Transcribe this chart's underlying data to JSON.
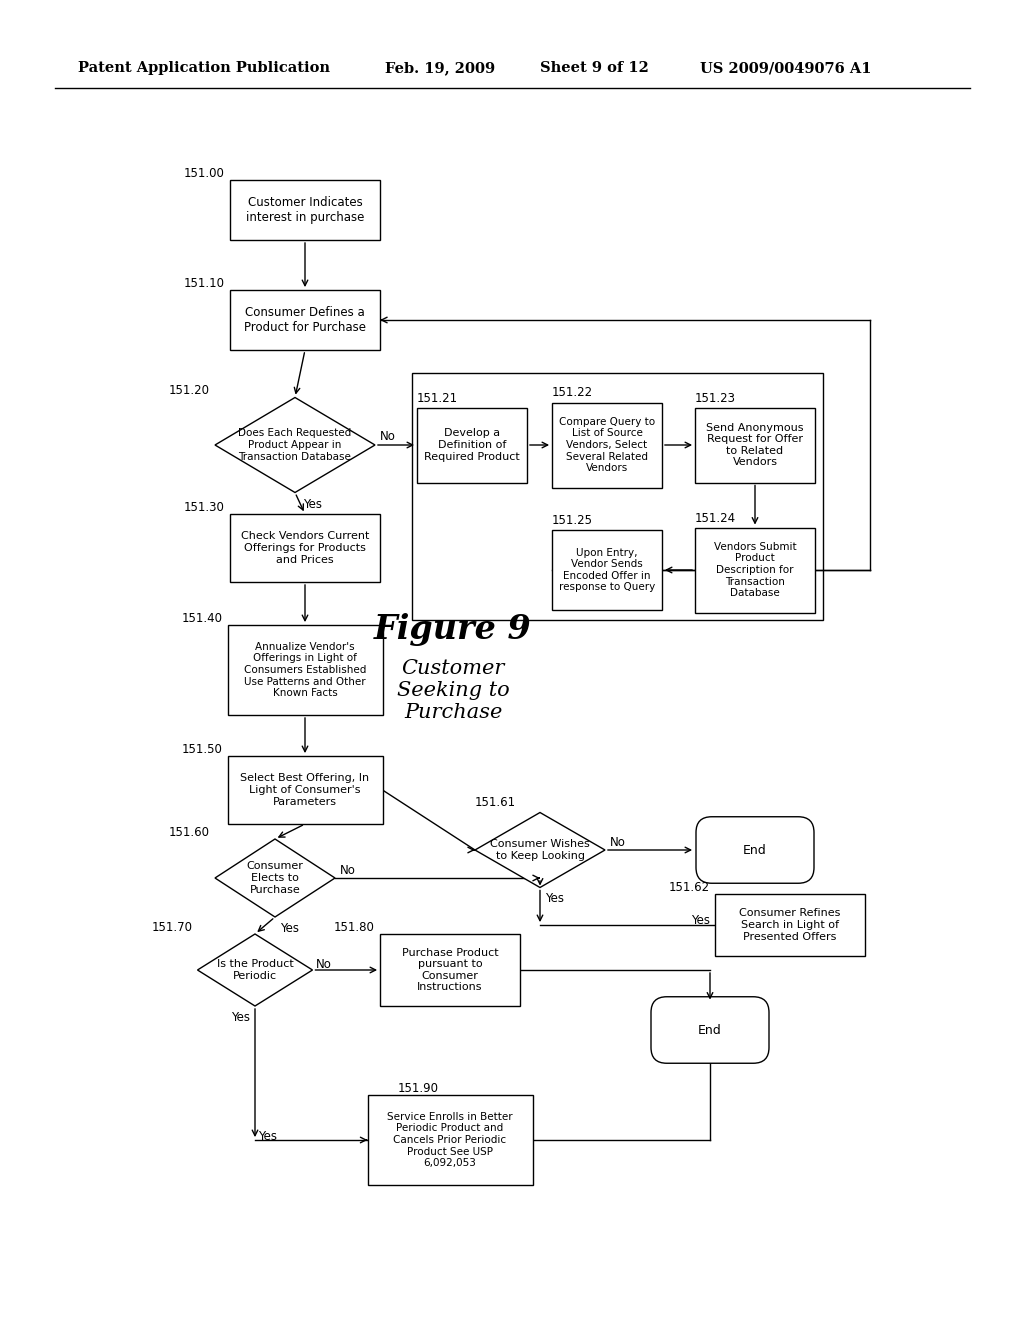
{
  "background_color": "#ffffff",
  "header": {
    "left": "Patent Application Publication",
    "center1": "Feb. 19, 2009",
    "center2": "Sheet 9 of 12",
    "right": "US 2009/0049076 A1"
  },
  "figure_label": "Figure 9",
  "figure_sublabel": "Customer\nSeeking to\nPurchase"
}
